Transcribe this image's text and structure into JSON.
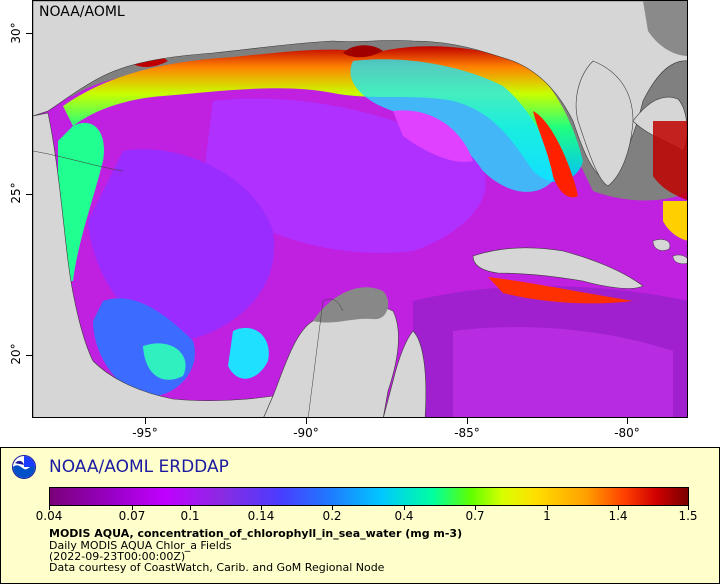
{
  "map": {
    "watermark": "NOAA/AOML",
    "lat_labels": [
      "30°",
      "25°",
      "20°"
    ],
    "lon_labels": [
      "-95°",
      "-90°",
      "-85°",
      "-80°"
    ]
  },
  "legend": {
    "title": "NOAA/AOML ERDDAP",
    "logo_icon": "noaa-logo",
    "colorbar_ticks": [
      "0.04",
      "0.07",
      "0.1",
      "0.14",
      "0.2",
      "0.4",
      "0.7",
      "1",
      "1.4",
      "1.5"
    ],
    "variable_line": "MODIS AQUA, concentration_of_chlorophyll_in_sea_water (mg m-3)",
    "dataset_line": "Daily MODIS AQUA Chlor_a Fields",
    "time_line": "(2022-09-23T00:00:00Z)",
    "credit_line": "Data courtesy of CoastWatch, Carib. and GoM Regional Node"
  },
  "colors": {
    "land": "#d6d6d6",
    "no_data": "#7f7f7f",
    "legend_bg": "#ffffcc",
    "title_color": "#1a1aa0"
  }
}
